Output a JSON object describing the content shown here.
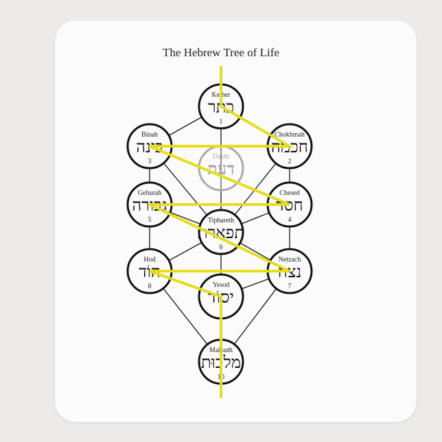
{
  "title": "The Hebrew Tree of Life",
  "colors": {
    "lightning": "#e6dd1c",
    "node_outline": "#111111",
    "daath_outline": "#aaaaaa",
    "pad": "#fbfbfb"
  },
  "nodes": [
    {
      "id": "kether",
      "name": "Kether",
      "hebrew": "כתר",
      "number": "1"
    },
    {
      "id": "chokhmah",
      "name": "Chokhmah",
      "hebrew": "חכמה",
      "number": "2"
    },
    {
      "id": "binah",
      "name": "Binah",
      "hebrew": "בינה",
      "number": "3"
    },
    {
      "id": "daath",
      "name": "Daath",
      "hebrew": "דעת",
      "number": ""
    },
    {
      "id": "chesed",
      "name": "Chesed",
      "hebrew": "חסד",
      "number": "4"
    },
    {
      "id": "geburah",
      "name": "Geburah",
      "hebrew": "גבורה",
      "number": "5"
    },
    {
      "id": "tiphareth",
      "name": "Tiphareth",
      "hebrew": "תפארת",
      "number": "6"
    },
    {
      "id": "netzach",
      "name": "Netzach",
      "hebrew": "נצח",
      "number": "7"
    },
    {
      "id": "hod",
      "name": "Hod",
      "hebrew": "הוֹד",
      "number": "8"
    },
    {
      "id": "yesod",
      "name": "Yesod",
      "hebrew": "יסוֹד",
      "number": "9"
    },
    {
      "id": "malkuth",
      "name": "Malkuth",
      "hebrew": "מלכוּת",
      "number": "10"
    }
  ],
  "paths": [
    [
      "kether",
      "binah"
    ],
    [
      "kether",
      "chokhmah"
    ],
    [
      "kether",
      "tiphareth"
    ],
    [
      "binah",
      "chokhmah"
    ],
    [
      "binah",
      "geburah"
    ],
    [
      "chokhmah",
      "chesed"
    ],
    [
      "binah",
      "tiphareth"
    ],
    [
      "chokhmah",
      "tiphareth"
    ],
    [
      "geburah",
      "chesed"
    ],
    [
      "geburah",
      "tiphareth"
    ],
    [
      "chesed",
      "tiphareth"
    ],
    [
      "geburah",
      "hod"
    ],
    [
      "chesed",
      "netzach"
    ],
    [
      "tiphareth",
      "hod"
    ],
    [
      "tiphareth",
      "netzach"
    ],
    [
      "tiphareth",
      "yesod"
    ],
    [
      "hod",
      "netzach"
    ],
    [
      "hod",
      "yesod"
    ],
    [
      "netzach",
      "yesod"
    ],
    [
      "hod",
      "malkuth"
    ],
    [
      "netzach",
      "malkuth"
    ],
    [
      "yesod",
      "malkuth"
    ]
  ],
  "lightning": [
    "kether",
    "chokhmah",
    "binah",
    "chesed",
    "geburah",
    "netzach",
    "hod",
    "yesod"
  ]
}
